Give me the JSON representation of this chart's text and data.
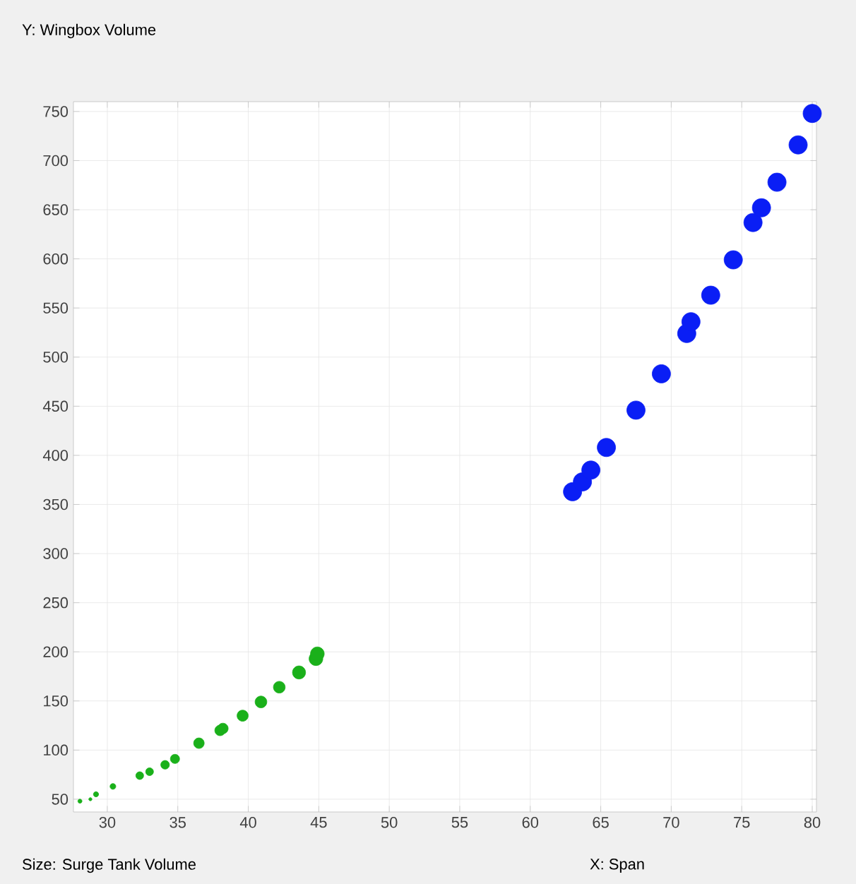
{
  "chart_data": {
    "type": "bubble",
    "ylabel": "Y: Wingbox Volume",
    "xlabel": "X: Span",
    "annotations": [
      "Size: Surge Tank Volume"
    ],
    "xlim": [
      27.6,
      80.3
    ],
    "ylim": [
      37,
      760
    ],
    "xticks": [
      30,
      35,
      40,
      45,
      50,
      55,
      60,
      65,
      70,
      75,
      80
    ],
    "yticks": [
      50,
      100,
      150,
      200,
      250,
      300,
      350,
      400,
      450,
      500,
      550,
      600,
      650,
      700,
      750
    ],
    "grid": true,
    "series": [
      {
        "color": "#1ab01a",
        "x": [
          28.06,
          28.8,
          29.2,
          30.4,
          32.3,
          33.0,
          34.1,
          34.8,
          36.5,
          38.0,
          38.2,
          39.6,
          40.9,
          42.2,
          43.6,
          44.8,
          44.9
        ],
        "values": [
          48,
          50,
          55,
          63,
          74,
          78,
          85,
          91,
          107,
          120,
          122,
          135,
          149,
          164,
          179,
          193,
          198
        ],
        "sizes": [
          0.05,
          0.03,
          0.08,
          0.1,
          0.18,
          0.18,
          0.22,
          0.25,
          0.33,
          0.33,
          0.33,
          0.37,
          0.41,
          0.41,
          0.51,
          0.56,
          0.56
        ]
      },
      {
        "color": "#0a1ef5",
        "x": [
          63.0,
          63.7,
          64.3,
          65.4,
          67.5,
          69.3,
          71.1,
          71.4,
          72.8,
          74.4,
          75.8,
          76.4,
          77.5,
          79.0,
          80.0
        ],
        "values": [
          363,
          373,
          385,
          408,
          446,
          483,
          524,
          536,
          563,
          599,
          637,
          652,
          678,
          716,
          748
        ],
        "sizes": [
          1,
          1,
          1,
          1,
          1,
          1,
          1,
          1,
          1,
          1,
          1,
          1,
          1,
          1,
          1
        ]
      }
    ]
  }
}
